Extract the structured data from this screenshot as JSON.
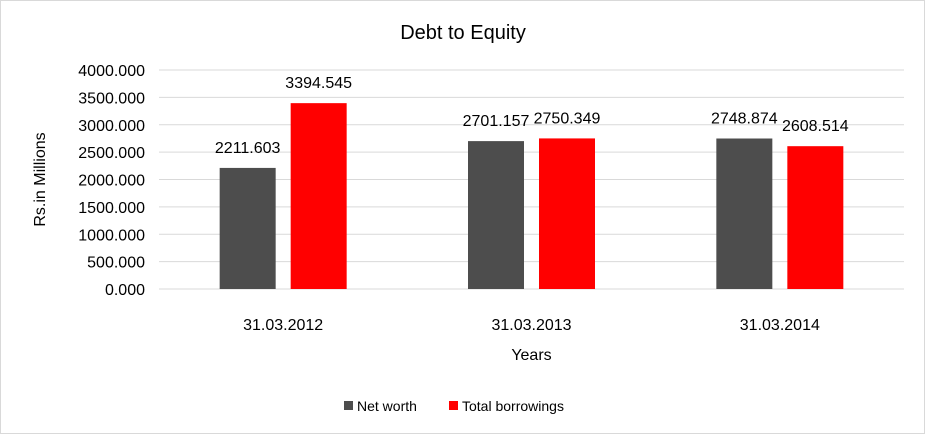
{
  "chart_data": {
    "type": "bar",
    "title": "Debt to Equity",
    "xlabel": "Years",
    "ylabel": "Rs.in Millions",
    "categories": [
      "31.03.2012",
      "31.03.2013",
      "31.03.2014"
    ],
    "series": [
      {
        "name": "Net worth",
        "color": "#4d4d4d",
        "values": [
          2211.603,
          2701.157,
          2748.874
        ],
        "labels": [
          "2211.603",
          "2701.157",
          "2748.874"
        ]
      },
      {
        "name": "Total borrowings",
        "color": "#ff0000",
        "values": [
          3394.545,
          2750.349,
          2608.514
        ],
        "labels": [
          "3394.545",
          "2750.349",
          "2608.514"
        ]
      }
    ],
    "ylim": [
      0,
      4000
    ],
    "ytick_labels": [
      "0.000",
      "500.000",
      "1000.000",
      "1500.000",
      "2000.000",
      "2500.000",
      "3000.000",
      "3500.000",
      "4000.000"
    ],
    "grid": true,
    "legend_position": "bottom"
  }
}
